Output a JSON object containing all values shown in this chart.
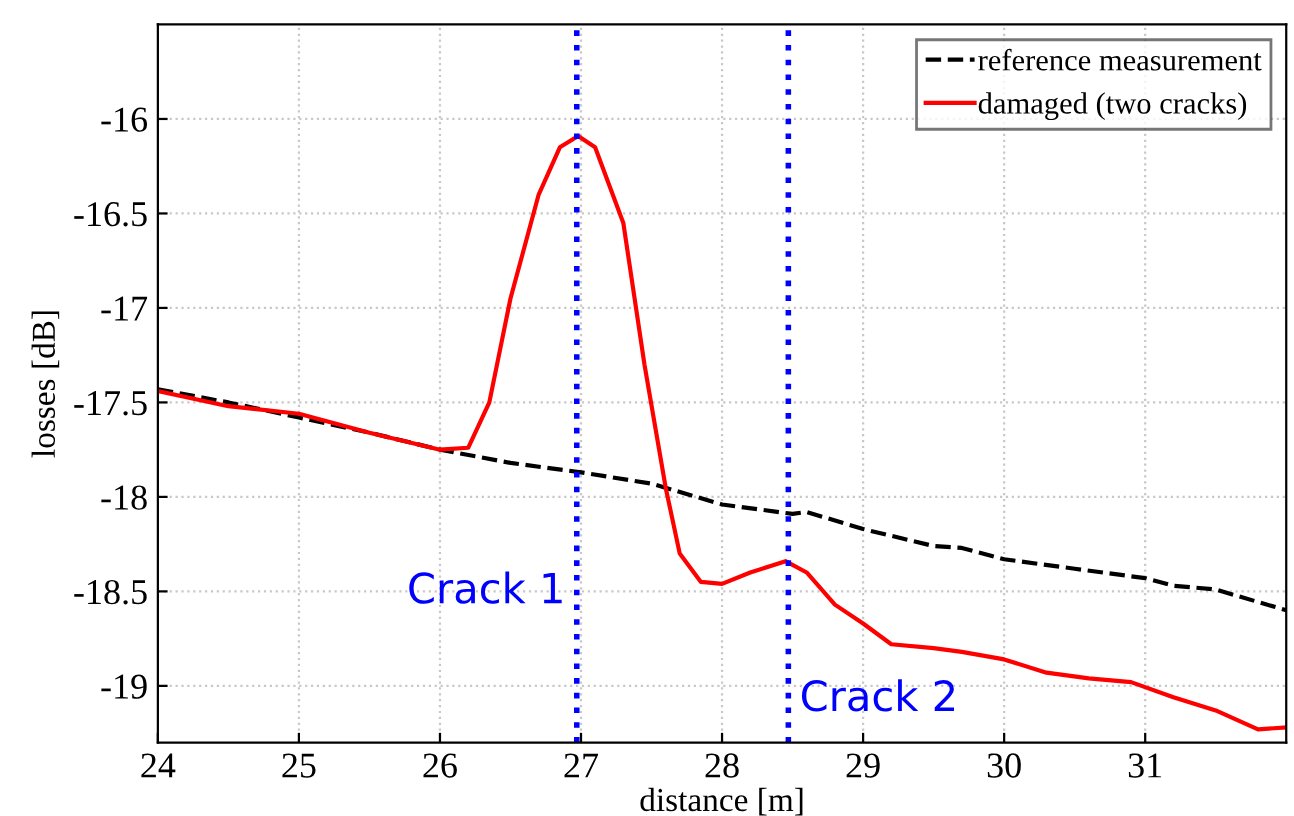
{
  "chart_data": {
    "type": "line",
    "xlabel": "distance [m]",
    "ylabel": "losses [dB]",
    "xlim": [
      24,
      32
    ],
    "ylim": [
      -19.3,
      -15.5
    ],
    "xticks": [
      24,
      25,
      26,
      27,
      28,
      29,
      30,
      31
    ],
    "yticks": [
      -19,
      -18.5,
      -18,
      -17.5,
      -17,
      -16.5,
      -16
    ],
    "grid": true,
    "legend": "top right",
    "series": [
      {
        "name": "reference measurement",
        "color": "#000000",
        "line_style": "dashed",
        "x": [
          24,
          24.5,
          25,
          25.5,
          26,
          26.5,
          27,
          27.5,
          28,
          28.5,
          28.6,
          29,
          29.5,
          29.7,
          30,
          30.5,
          31,
          31.2,
          31.5,
          32
        ],
        "values": [
          -17.43,
          -17.5,
          -17.58,
          -17.66,
          -17.75,
          -17.82,
          -17.87,
          -17.93,
          -18.04,
          -18.09,
          -18.08,
          -18.17,
          -18.26,
          -18.27,
          -18.33,
          -18.38,
          -18.43,
          -18.47,
          -18.49,
          -18.6
        ]
      },
      {
        "name": "damaged (two cracks)",
        "color": "#ff0000",
        "line_style": "solid",
        "x": [
          24,
          24.5,
          25,
          25.5,
          26,
          26.2,
          26.35,
          26.5,
          26.7,
          26.85,
          26.98,
          27.1,
          27.3,
          27.45,
          27.6,
          27.7,
          27.85,
          28,
          28.2,
          28.45,
          28.6,
          28.8,
          29,
          29.2,
          29.5,
          29.7,
          30,
          30.3,
          30.6,
          30.9,
          31.2,
          31.5,
          31.8,
          32
        ],
        "values": [
          -17.44,
          -17.52,
          -17.56,
          -17.66,
          -17.75,
          -17.74,
          -17.5,
          -16.95,
          -16.4,
          -16.15,
          -16.09,
          -16.15,
          -16.55,
          -17.3,
          -17.95,
          -18.3,
          -18.45,
          -18.46,
          -18.4,
          -18.34,
          -18.4,
          -18.57,
          -18.67,
          -18.78,
          -18.8,
          -18.82,
          -18.86,
          -18.93,
          -18.96,
          -18.98,
          -19.06,
          -19.13,
          -19.23,
          -19.22
        ]
      }
    ],
    "ref_lines": [
      {
        "axis": "x",
        "value": 26.97,
        "label": "Crack 1",
        "color": "#0000ff",
        "line_style": "dotted"
      },
      {
        "axis": "x",
        "value": 28.47,
        "label": "Crack 2",
        "color": "#0000ff",
        "line_style": "dotted"
      }
    ]
  }
}
